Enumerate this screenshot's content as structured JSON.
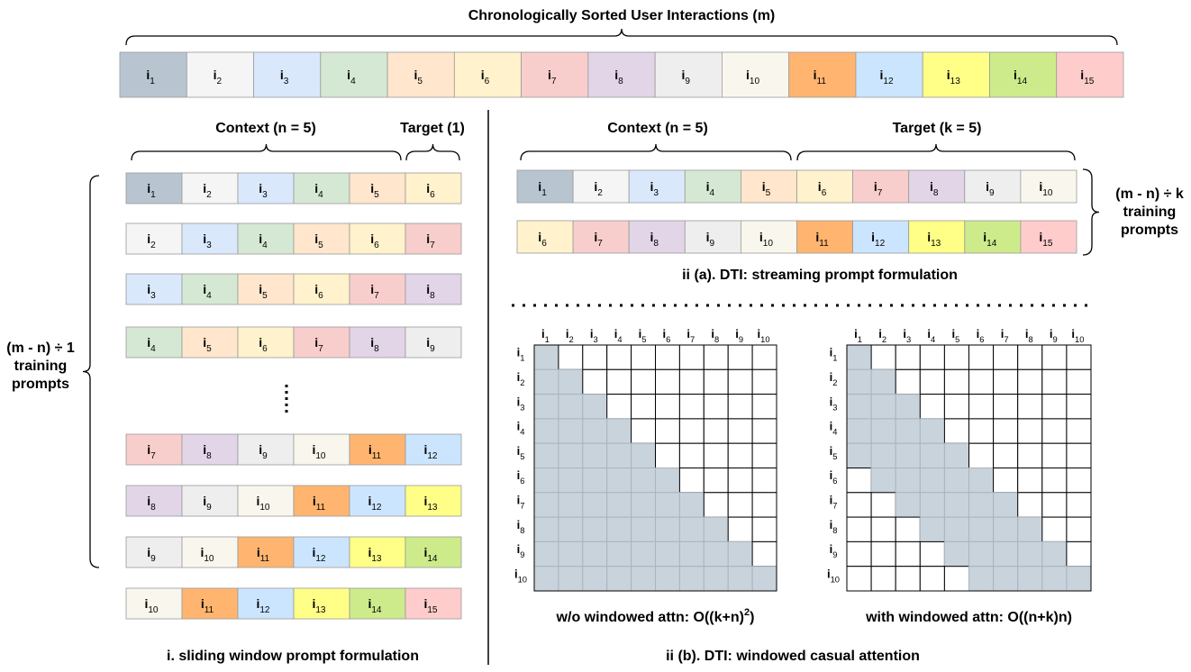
{
  "title": "Chronologically Sorted User Interactions (m)",
  "colors": [
    "#b8c5d0",
    "#f5f5f5",
    "#dae8fc",
    "#d5e8d4",
    "#ffe6cc",
    "#fff2cc",
    "#f8cecc",
    "#e1d5e7",
    "#eeeeee",
    "#f9f7ed",
    "#ffb570",
    "#cce5ff",
    "#ffff88",
    "#cdeb8b",
    "#ffcccc"
  ],
  "sequence": [
    [
      "i",
      "1"
    ],
    [
      "i",
      "2"
    ],
    [
      "i",
      "3"
    ],
    [
      "i",
      "4"
    ],
    [
      "i",
      "5"
    ],
    [
      "i",
      "6"
    ],
    [
      "i",
      "7"
    ],
    [
      "i",
      "8"
    ],
    [
      "i",
      "9"
    ],
    [
      "i",
      "10"
    ],
    [
      "i",
      "11"
    ],
    [
      "i",
      "12"
    ],
    [
      "i",
      "13"
    ],
    [
      "i",
      "14"
    ],
    [
      "i",
      "15"
    ]
  ],
  "sliding": {
    "context_label": "Context (n = 5)",
    "target_label": "Target (1)",
    "rows": [
      [
        [
          "i",
          "1"
        ],
        [
          "i",
          "2"
        ],
        [
          "i",
          "3"
        ],
        [
          "i",
          "4"
        ],
        [
          "i",
          "5"
        ],
        [
          "i",
          "6"
        ]
      ],
      [
        [
          "i",
          "2"
        ],
        [
          "i",
          "3"
        ],
        [
          "i",
          "4"
        ],
        [
          "i",
          "5"
        ],
        [
          "i",
          "6"
        ],
        [
          "i",
          "7"
        ]
      ],
      [
        [
          "i",
          "3"
        ],
        [
          "i",
          "4"
        ],
        [
          "i",
          "5"
        ],
        [
          "i",
          "6"
        ],
        [
          "i",
          "7"
        ],
        [
          "i",
          "8"
        ]
      ],
      [
        [
          "i",
          "4"
        ],
        [
          "i",
          "5"
        ],
        [
          "i",
          "6"
        ],
        [
          "i",
          "7"
        ],
        [
          "i",
          "8"
        ],
        [
          "i",
          "9"
        ]
      ],
      [
        [
          "i",
          "7"
        ],
        [
          "i",
          "8"
        ],
        [
          "i",
          "9"
        ],
        [
          "i",
          "10"
        ],
        [
          "i",
          "11"
        ],
        [
          "i",
          "12"
        ]
      ],
      [
        [
          "i",
          "8"
        ],
        [
          "i",
          "9"
        ],
        [
          "i",
          "10"
        ],
        [
          "i",
          "11"
        ],
        [
          "i",
          "12"
        ],
        [
          "i",
          "13"
        ]
      ],
      [
        [
          "i",
          "9"
        ],
        [
          "i",
          "10"
        ],
        [
          "i",
          "11"
        ],
        [
          "i",
          "12"
        ],
        [
          "i",
          "13"
        ],
        [
          "i",
          "14"
        ]
      ],
      [
        [
          "i",
          "10"
        ],
        [
          "i",
          "11"
        ],
        [
          "i",
          "12"
        ],
        [
          "i",
          "13"
        ],
        [
          "i",
          "14"
        ],
        [
          "i",
          "15"
        ]
      ]
    ],
    "count_label": [
      "(m - n) ÷ 1",
      "training",
      "prompts"
    ],
    "caption": "i. sliding window prompt formulation"
  },
  "streaming": {
    "context_label": "Context (n = 5)",
    "target_label": "Target (k = 5)",
    "rows": [
      [
        [
          "i",
          "1"
        ],
        [
          "i",
          "2"
        ],
        [
          "i",
          "3"
        ],
        [
          "i",
          "4"
        ],
        [
          "i",
          "5"
        ],
        [
          "i",
          "6"
        ],
        [
          "i",
          "7"
        ],
        [
          "i",
          "8"
        ],
        [
          "i",
          "9"
        ],
        [
          "i",
          "10"
        ]
      ],
      [
        [
          "i",
          "6"
        ],
        [
          "i",
          "7"
        ],
        [
          "i",
          "8"
        ],
        [
          "i",
          "9"
        ],
        [
          "i",
          "10"
        ],
        [
          "i",
          "11"
        ],
        [
          "i",
          "12"
        ],
        [
          "i",
          "13"
        ],
        [
          "i",
          "14"
        ],
        [
          "i",
          "15"
        ]
      ]
    ],
    "count_label": [
      "(m - n) ÷ k",
      "training",
      "prompts"
    ],
    "caption": "ii (a). DTI: streaming prompt formulation"
  },
  "attention": {
    "labels": [
      [
        "i",
        "1"
      ],
      [
        "i",
        "2"
      ],
      [
        "i",
        "3"
      ],
      [
        "i",
        "4"
      ],
      [
        "i",
        "5"
      ],
      [
        "i",
        "6"
      ],
      [
        "i",
        "7"
      ],
      [
        "i",
        "8"
      ],
      [
        "i",
        "9"
      ],
      [
        "i",
        "10"
      ]
    ],
    "matrices": [
      {
        "caption": [
          "w/o windowed attn: O((k+n)",
          "2",
          ")"
        ]
      },
      {
        "caption": [
          "with windowed attn: O((n+k)n)"
        ]
      }
    ],
    "caption": "ii (b). DTI: windowed casual attention"
  }
}
